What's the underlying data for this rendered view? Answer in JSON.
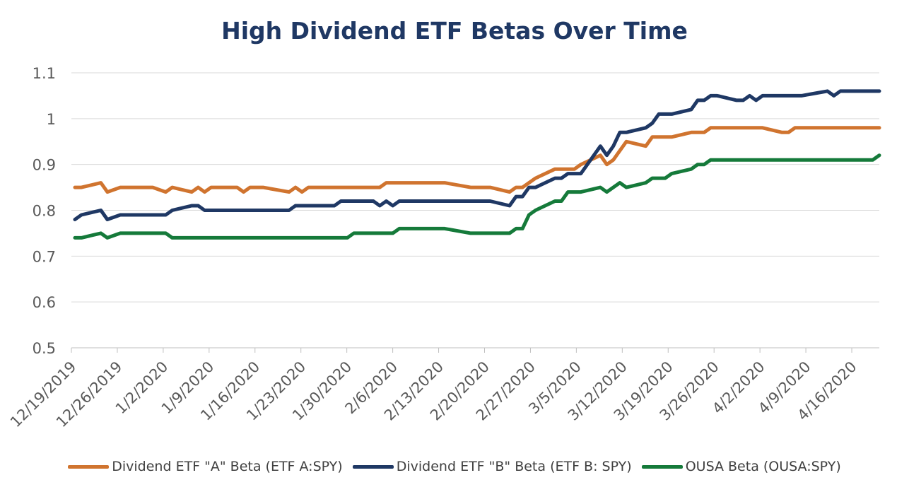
{
  "chart_data": {
    "type": "line",
    "title": "High Dividend ETF Betas Over Time",
    "xlabel": "",
    "ylabel": "",
    "ylim": [
      0.5,
      1.1
    ],
    "yticks": [
      "0.5",
      "0.6",
      "0.7",
      "0.8",
      "0.9",
      "1",
      "1.1"
    ],
    "grid": true,
    "legend_position": "bottom",
    "xtick_labels": [
      "12/19/2019",
      "12/26/2019",
      "1/2/2020",
      "1/9/2020",
      "1/16/2020",
      "1/23/2020",
      "1/30/2020",
      "2/6/2020",
      "2/13/2020",
      "2/20/2020",
      "2/27/2020",
      "3/5/2020",
      "3/12/2020",
      "3/19/2020",
      "3/26/2020",
      "4/2/2020",
      "4/9/2020",
      "4/16/2020"
    ],
    "x_start": "2019-12-19",
    "x_end": "2020-04-21",
    "series": [
      {
        "name": "Dividend ETF \"A\" Beta (ETF A:SPY)",
        "color": "#d0742f",
        "points": [
          [
            "2019-12-19",
            0.85
          ],
          [
            "2019-12-20",
            0.85
          ],
          [
            "2019-12-23",
            0.86
          ],
          [
            "2019-12-24",
            0.84
          ],
          [
            "2019-12-26",
            0.85
          ],
          [
            "2019-12-27",
            0.85
          ],
          [
            "2019-12-30",
            0.85
          ],
          [
            "2019-12-31",
            0.85
          ],
          [
            "2020-01-02",
            0.84
          ],
          [
            "2020-01-03",
            0.85
          ],
          [
            "2020-01-06",
            0.84
          ],
          [
            "2020-01-07",
            0.85
          ],
          [
            "2020-01-08",
            0.84
          ],
          [
            "2020-01-09",
            0.85
          ],
          [
            "2020-01-10",
            0.85
          ],
          [
            "2020-01-13",
            0.85
          ],
          [
            "2020-01-14",
            0.84
          ],
          [
            "2020-01-15",
            0.85
          ],
          [
            "2020-01-16",
            0.85
          ],
          [
            "2020-01-17",
            0.85
          ],
          [
            "2020-01-21",
            0.84
          ],
          [
            "2020-01-22",
            0.85
          ],
          [
            "2020-01-23",
            0.84
          ],
          [
            "2020-01-24",
            0.85
          ],
          [
            "2020-01-27",
            0.85
          ],
          [
            "2020-01-28",
            0.85
          ],
          [
            "2020-01-29",
            0.85
          ],
          [
            "2020-01-30",
            0.85
          ],
          [
            "2020-01-31",
            0.85
          ],
          [
            "2020-02-03",
            0.85
          ],
          [
            "2020-02-04",
            0.85
          ],
          [
            "2020-02-05",
            0.86
          ],
          [
            "2020-02-06",
            0.86
          ],
          [
            "2020-02-07",
            0.86
          ],
          [
            "2020-02-10",
            0.86
          ],
          [
            "2020-02-11",
            0.86
          ],
          [
            "2020-02-12",
            0.86
          ],
          [
            "2020-02-13",
            0.86
          ],
          [
            "2020-02-14",
            0.86
          ],
          [
            "2020-02-18",
            0.85
          ],
          [
            "2020-02-19",
            0.85
          ],
          [
            "2020-02-20",
            0.85
          ],
          [
            "2020-02-21",
            0.85
          ],
          [
            "2020-02-24",
            0.84
          ],
          [
            "2020-02-25",
            0.85
          ],
          [
            "2020-02-26",
            0.85
          ],
          [
            "2020-02-27",
            0.86
          ],
          [
            "2020-02-28",
            0.87
          ],
          [
            "2020-03-02",
            0.89
          ],
          [
            "2020-03-03",
            0.89
          ],
          [
            "2020-03-04",
            0.89
          ],
          [
            "2020-03-05",
            0.89
          ],
          [
            "2020-03-06",
            0.9
          ],
          [
            "2020-03-09",
            0.92
          ],
          [
            "2020-03-10",
            0.9
          ],
          [
            "2020-03-11",
            0.91
          ],
          [
            "2020-03-12",
            0.93
          ],
          [
            "2020-03-13",
            0.95
          ],
          [
            "2020-03-16",
            0.94
          ],
          [
            "2020-03-17",
            0.96
          ],
          [
            "2020-03-18",
            0.96
          ],
          [
            "2020-03-19",
            0.96
          ],
          [
            "2020-03-20",
            0.96
          ],
          [
            "2020-03-23",
            0.97
          ],
          [
            "2020-03-24",
            0.97
          ],
          [
            "2020-03-25",
            0.97
          ],
          [
            "2020-03-26",
            0.98
          ],
          [
            "2020-03-27",
            0.98
          ],
          [
            "2020-03-30",
            0.98
          ],
          [
            "2020-03-31",
            0.98
          ],
          [
            "2020-04-01",
            0.98
          ],
          [
            "2020-04-02",
            0.98
          ],
          [
            "2020-04-03",
            0.98
          ],
          [
            "2020-04-06",
            0.97
          ],
          [
            "2020-04-07",
            0.97
          ],
          [
            "2020-04-08",
            0.98
          ],
          [
            "2020-04-09",
            0.98
          ],
          [
            "2020-04-13",
            0.98
          ],
          [
            "2020-04-14",
            0.98
          ],
          [
            "2020-04-15",
            0.98
          ],
          [
            "2020-04-16",
            0.98
          ],
          [
            "2020-04-17",
            0.98
          ],
          [
            "2020-04-20",
            0.98
          ],
          [
            "2020-04-21",
            0.98
          ]
        ]
      },
      {
        "name": "Dividend ETF \"B\" Beta (ETF B: SPY)",
        "color": "#1f3864",
        "points": [
          [
            "2019-12-19",
            0.78
          ],
          [
            "2019-12-20",
            0.79
          ],
          [
            "2019-12-23",
            0.8
          ],
          [
            "2019-12-24",
            0.78
          ],
          [
            "2019-12-26",
            0.79
          ],
          [
            "2019-12-27",
            0.79
          ],
          [
            "2019-12-30",
            0.79
          ],
          [
            "2019-12-31",
            0.79
          ],
          [
            "2020-01-02",
            0.79
          ],
          [
            "2020-01-03",
            0.8
          ],
          [
            "2020-01-06",
            0.81
          ],
          [
            "2020-01-07",
            0.81
          ],
          [
            "2020-01-08",
            0.8
          ],
          [
            "2020-01-09",
            0.8
          ],
          [
            "2020-01-10",
            0.8
          ],
          [
            "2020-01-13",
            0.8
          ],
          [
            "2020-01-14",
            0.8
          ],
          [
            "2020-01-15",
            0.8
          ],
          [
            "2020-01-16",
            0.8
          ],
          [
            "2020-01-17",
            0.8
          ],
          [
            "2020-01-21",
            0.8
          ],
          [
            "2020-01-22",
            0.81
          ],
          [
            "2020-01-23",
            0.81
          ],
          [
            "2020-01-24",
            0.81
          ],
          [
            "2020-01-27",
            0.81
          ],
          [
            "2020-01-28",
            0.81
          ],
          [
            "2020-01-29",
            0.82
          ],
          [
            "2020-01-30",
            0.82
          ],
          [
            "2020-01-31",
            0.82
          ],
          [
            "2020-02-03",
            0.82
          ],
          [
            "2020-02-04",
            0.81
          ],
          [
            "2020-02-05",
            0.82
          ],
          [
            "2020-02-06",
            0.81
          ],
          [
            "2020-02-07",
            0.82
          ],
          [
            "2020-02-10",
            0.82
          ],
          [
            "2020-02-11",
            0.82
          ],
          [
            "2020-02-12",
            0.82
          ],
          [
            "2020-02-13",
            0.82
          ],
          [
            "2020-02-14",
            0.82
          ],
          [
            "2020-02-18",
            0.82
          ],
          [
            "2020-02-19",
            0.82
          ],
          [
            "2020-02-20",
            0.82
          ],
          [
            "2020-02-21",
            0.82
          ],
          [
            "2020-02-24",
            0.81
          ],
          [
            "2020-02-25",
            0.83
          ],
          [
            "2020-02-26",
            0.83
          ],
          [
            "2020-02-27",
            0.85
          ],
          [
            "2020-02-28",
            0.85
          ],
          [
            "2020-03-02",
            0.87
          ],
          [
            "2020-03-03",
            0.87
          ],
          [
            "2020-03-04",
            0.88
          ],
          [
            "2020-03-05",
            0.88
          ],
          [
            "2020-03-06",
            0.88
          ],
          [
            "2020-03-09",
            0.94
          ],
          [
            "2020-03-10",
            0.92
          ],
          [
            "2020-03-11",
            0.94
          ],
          [
            "2020-03-12",
            0.97
          ],
          [
            "2020-03-13",
            0.97
          ],
          [
            "2020-03-16",
            0.98
          ],
          [
            "2020-03-17",
            0.99
          ],
          [
            "2020-03-18",
            1.01
          ],
          [
            "2020-03-19",
            1.01
          ],
          [
            "2020-03-20",
            1.01
          ],
          [
            "2020-03-23",
            1.02
          ],
          [
            "2020-03-24",
            1.04
          ],
          [
            "2020-03-25",
            1.04
          ],
          [
            "2020-03-26",
            1.05
          ],
          [
            "2020-03-27",
            1.05
          ],
          [
            "2020-03-30",
            1.04
          ],
          [
            "2020-03-31",
            1.04
          ],
          [
            "2020-04-01",
            1.05
          ],
          [
            "2020-04-02",
            1.04
          ],
          [
            "2020-04-03",
            1.05
          ],
          [
            "2020-04-06",
            1.05
          ],
          [
            "2020-04-07",
            1.05
          ],
          [
            "2020-04-08",
            1.05
          ],
          [
            "2020-04-09",
            1.05
          ],
          [
            "2020-04-13",
            1.06
          ],
          [
            "2020-04-14",
            1.05
          ],
          [
            "2020-04-15",
            1.06
          ],
          [
            "2020-04-16",
            1.06
          ],
          [
            "2020-04-17",
            1.06
          ],
          [
            "2020-04-20",
            1.06
          ],
          [
            "2020-04-21",
            1.06
          ]
        ]
      },
      {
        "name": "OUSA Beta (OUSA:SPY)",
        "color": "#157a3a",
        "points": [
          [
            "2019-12-19",
            0.74
          ],
          [
            "2019-12-20",
            0.74
          ],
          [
            "2019-12-23",
            0.75
          ],
          [
            "2019-12-24",
            0.74
          ],
          [
            "2019-12-26",
            0.75
          ],
          [
            "2019-12-27",
            0.75
          ],
          [
            "2019-12-30",
            0.75
          ],
          [
            "2019-12-31",
            0.75
          ],
          [
            "2020-01-02",
            0.75
          ],
          [
            "2020-01-03",
            0.74
          ],
          [
            "2020-01-06",
            0.74
          ],
          [
            "2020-01-07",
            0.74
          ],
          [
            "2020-01-08",
            0.74
          ],
          [
            "2020-01-09",
            0.74
          ],
          [
            "2020-01-10",
            0.74
          ],
          [
            "2020-01-13",
            0.74
          ],
          [
            "2020-01-14",
            0.74
          ],
          [
            "2020-01-15",
            0.74
          ],
          [
            "2020-01-16",
            0.74
          ],
          [
            "2020-01-17",
            0.74
          ],
          [
            "2020-01-21",
            0.74
          ],
          [
            "2020-01-22",
            0.74
          ],
          [
            "2020-01-23",
            0.74
          ],
          [
            "2020-01-24",
            0.74
          ],
          [
            "2020-01-27",
            0.74
          ],
          [
            "2020-01-28",
            0.74
          ],
          [
            "2020-01-29",
            0.74
          ],
          [
            "2020-01-30",
            0.74
          ],
          [
            "2020-01-31",
            0.75
          ],
          [
            "2020-02-03",
            0.75
          ],
          [
            "2020-02-04",
            0.75
          ],
          [
            "2020-02-05",
            0.75
          ],
          [
            "2020-02-06",
            0.75
          ],
          [
            "2020-02-07",
            0.76
          ],
          [
            "2020-02-10",
            0.76
          ],
          [
            "2020-02-11",
            0.76
          ],
          [
            "2020-02-12",
            0.76
          ],
          [
            "2020-02-13",
            0.76
          ],
          [
            "2020-02-14",
            0.76
          ],
          [
            "2020-02-18",
            0.75
          ],
          [
            "2020-02-19",
            0.75
          ],
          [
            "2020-02-20",
            0.75
          ],
          [
            "2020-02-21",
            0.75
          ],
          [
            "2020-02-24",
            0.75
          ],
          [
            "2020-02-25",
            0.76
          ],
          [
            "2020-02-26",
            0.76
          ],
          [
            "2020-02-27",
            0.79
          ],
          [
            "2020-02-28",
            0.8
          ],
          [
            "2020-03-02",
            0.82
          ],
          [
            "2020-03-03",
            0.82
          ],
          [
            "2020-03-04",
            0.84
          ],
          [
            "2020-03-05",
            0.84
          ],
          [
            "2020-03-06",
            0.84
          ],
          [
            "2020-03-09",
            0.85
          ],
          [
            "2020-03-10",
            0.84
          ],
          [
            "2020-03-11",
            0.85
          ],
          [
            "2020-03-12",
            0.86
          ],
          [
            "2020-03-13",
            0.85
          ],
          [
            "2020-03-16",
            0.86
          ],
          [
            "2020-03-17",
            0.87
          ],
          [
            "2020-03-18",
            0.87
          ],
          [
            "2020-03-19",
            0.87
          ],
          [
            "2020-03-20",
            0.88
          ],
          [
            "2020-03-23",
            0.89
          ],
          [
            "2020-03-24",
            0.9
          ],
          [
            "2020-03-25",
            0.9
          ],
          [
            "2020-03-26",
            0.91
          ],
          [
            "2020-03-27",
            0.91
          ],
          [
            "2020-03-30",
            0.91
          ],
          [
            "2020-03-31",
            0.91
          ],
          [
            "2020-04-01",
            0.91
          ],
          [
            "2020-04-02",
            0.91
          ],
          [
            "2020-04-03",
            0.91
          ],
          [
            "2020-04-06",
            0.91
          ],
          [
            "2020-04-07",
            0.91
          ],
          [
            "2020-04-08",
            0.91
          ],
          [
            "2020-04-09",
            0.91
          ],
          [
            "2020-04-13",
            0.91
          ],
          [
            "2020-04-14",
            0.91
          ],
          [
            "2020-04-15",
            0.91
          ],
          [
            "2020-04-16",
            0.91
          ],
          [
            "2020-04-17",
            0.91
          ],
          [
            "2020-04-20",
            0.91
          ],
          [
            "2020-04-21",
            0.92
          ]
        ]
      }
    ]
  }
}
